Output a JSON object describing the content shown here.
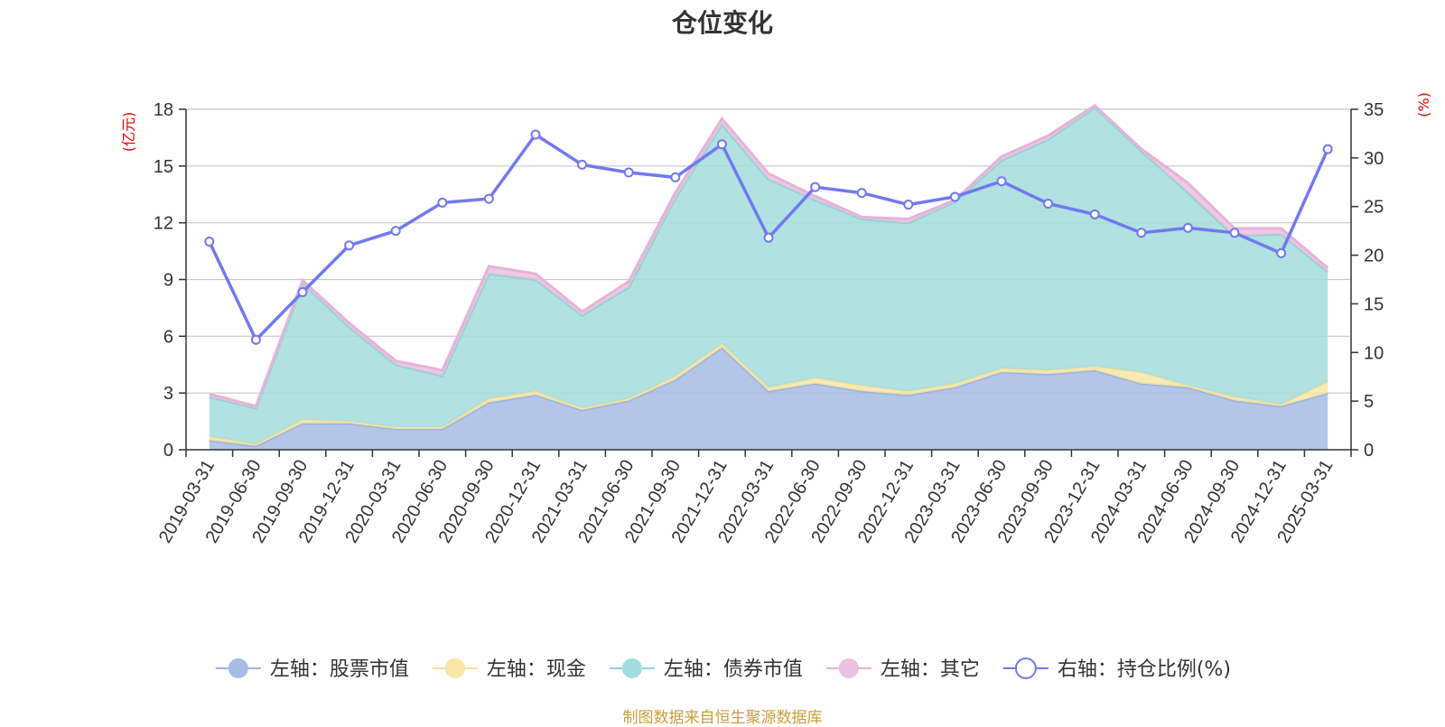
{
  "chart_data": {
    "type": "area",
    "title": "仓位变化",
    "source_note": "制图数据来自恒生聚源数据库",
    "categories": [
      "2019-03-31",
      "2019-06-30",
      "2019-09-30",
      "2019-12-31",
      "2020-03-31",
      "2020-06-30",
      "2020-09-30",
      "2020-12-31",
      "2021-03-31",
      "2021-06-30",
      "2021-09-30",
      "2021-12-31",
      "2022-03-31",
      "2022-06-30",
      "2022-09-30",
      "2022-12-31",
      "2023-03-31",
      "2023-06-30",
      "2023-09-30",
      "2023-12-31",
      "2024-03-31",
      "2024-06-30",
      "2024-09-30",
      "2024-12-31",
      "2025-03-31"
    ],
    "left_axis": {
      "unit": "(亿元)",
      "ylim": [
        0,
        18
      ],
      "ticks": [
        "0",
        "3",
        "6",
        "9",
        "12",
        "15",
        "18"
      ]
    },
    "right_axis": {
      "unit": "(%)",
      "ylim": [
        0,
        35
      ],
      "ticks": [
        "0",
        "5",
        "10",
        "15",
        "20",
        "25",
        "30",
        "35"
      ]
    },
    "grid": true,
    "legend_position": "bottom",
    "stacked_series": [
      {
        "name": "左轴：股票市值",
        "color": "#a7bce3",
        "line_color": "#9bb3e0",
        "values": [
          0.5,
          0.2,
          1.4,
          1.4,
          1.1,
          1.1,
          2.5,
          2.9,
          2.1,
          2.6,
          3.7,
          5.4,
          3.1,
          3.5,
          3.1,
          2.9,
          3.3,
          4.1,
          4.0,
          4.2,
          3.5,
          3.3,
          2.6,
          2.3,
          3.0
        ]
      },
      {
        "name": "左轴：现金",
        "color": "#f7e6a6",
        "line_color": "#f5e19e",
        "values": [
          0.2,
          0.1,
          0.2,
          0.1,
          0.1,
          0.1,
          0.2,
          0.2,
          0.1,
          0.1,
          0.2,
          0.2,
          0.2,
          0.3,
          0.3,
          0.2,
          0.2,
          0.2,
          0.2,
          0.2,
          0.6,
          0.1,
          0.2,
          0.1,
          0.6
        ]
      },
      {
        "name": "左轴：债券市值",
        "color": "#a3dcdc",
        "line_color": "#8fd3d3",
        "values": [
          2.1,
          1.9,
          7.2,
          5.0,
          3.3,
          2.7,
          6.6,
          5.9,
          4.9,
          5.9,
          9.4,
          11.6,
          11.0,
          9.4,
          8.8,
          8.9,
          9.6,
          11.0,
          12.2,
          13.7,
          11.7,
          10.2,
          8.5,
          9.0,
          5.8
        ]
      },
      {
        "name": "左轴：其它",
        "color": "#ecc0e0",
        "line_color": "#e6b3d9",
        "values": [
          0.15,
          0.1,
          0.15,
          0.2,
          0.2,
          0.3,
          0.4,
          0.3,
          0.2,
          0.3,
          0.3,
          0.3,
          0.3,
          0.2,
          0.1,
          0.2,
          0.1,
          0.2,
          0.2,
          0.1,
          0.1,
          0.5,
          0.4,
          0.3,
          0.2
        ]
      }
    ],
    "line_series": {
      "name": "右轴：持仓比例(%)",
      "color": "#7279ee",
      "axis": "right",
      "values": [
        21.4,
        11.3,
        16.2,
        21.0,
        22.5,
        25.4,
        25.8,
        32.4,
        29.3,
        28.5,
        28.0,
        31.4,
        21.8,
        27.0,
        26.4,
        25.2,
        26.0,
        27.6,
        25.3,
        24.2,
        22.3,
        22.8,
        22.3,
        20.2,
        30.9
      ]
    }
  }
}
